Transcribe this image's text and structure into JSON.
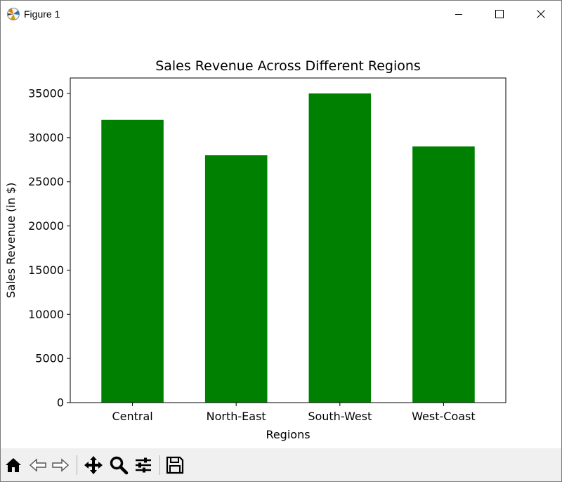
{
  "window": {
    "title": "Figure 1",
    "icons": {
      "app": "matplotlib-figure-icon",
      "minimize": "minimize-icon",
      "maximize": "maximize-icon",
      "close": "close-icon"
    }
  },
  "toolbar": {
    "buttons": [
      {
        "name": "home-icon",
        "tooltip": "Home"
      },
      {
        "name": "back-arrow-icon",
        "tooltip": "Back"
      },
      {
        "name": "forward-arrow-icon",
        "tooltip": "Forward"
      },
      {
        "name": "pan-move-icon",
        "tooltip": "Pan"
      },
      {
        "name": "zoom-magnifier-icon",
        "tooltip": "Zoom"
      },
      {
        "name": "configure-subplots-icon",
        "tooltip": "Subplots"
      },
      {
        "name": "save-floppy-icon",
        "tooltip": "Save"
      }
    ]
  },
  "chart_data": {
    "type": "bar",
    "title": "Sales Revenue Across Different Regions",
    "xlabel": "Regions",
    "ylabel": "Sales Revenue (in $)",
    "categories": [
      "Central",
      "North-East",
      "South-West",
      "West-Coast"
    ],
    "values": [
      32000,
      28000,
      35000,
      29000
    ],
    "ylim": [
      0,
      36750
    ],
    "yticks": [
      0,
      5000,
      10000,
      15000,
      20000,
      25000,
      30000,
      35000
    ],
    "ytick_labels": [
      "0",
      "5000",
      "10000",
      "15000",
      "20000",
      "25000",
      "30000",
      "35000"
    ],
    "bar_color": "#008000",
    "grid": false,
    "legend": "none"
  }
}
